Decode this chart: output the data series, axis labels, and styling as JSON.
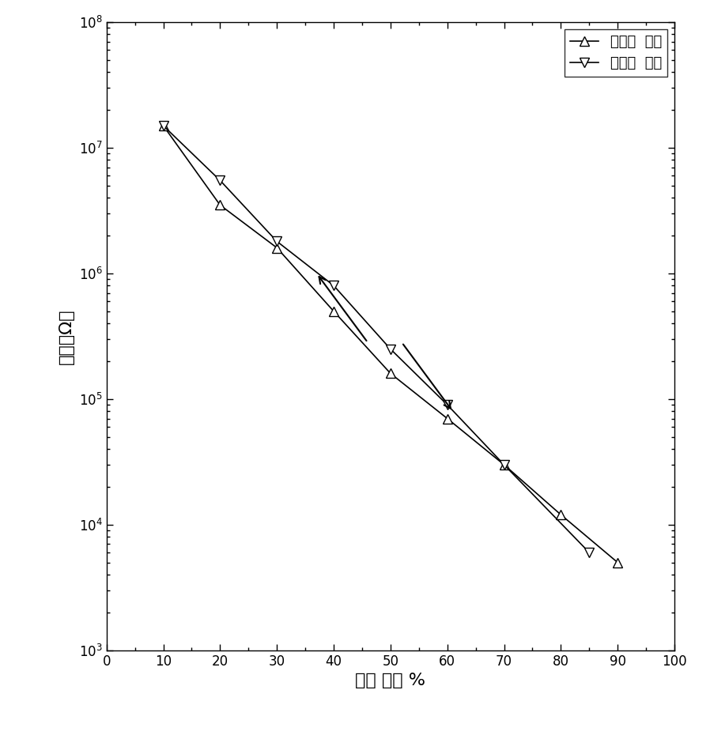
{
  "series1_label": "高湿到  低湿",
  "series2_label": "低湿到  高湿",
  "series1_x": [
    10,
    20,
    30,
    40,
    50,
    60,
    70,
    80,
    90
  ],
  "series1_y": [
    15000000.0,
    3500000.0,
    1600000.0,
    500000.0,
    160000.0,
    70000.0,
    30000.0,
    12000.0,
    5000
  ],
  "series2_x": [
    10,
    20,
    30,
    40,
    50,
    60,
    70,
    85
  ],
  "series2_y": [
    15000000.0,
    5500000.0,
    1800000.0,
    800000.0,
    250000.0,
    90000.0,
    30000.0,
    6000
  ],
  "xlabel": "相对 湿度 %",
  "ylabel": "电阻（Ω）",
  "xlim": [
    0,
    100
  ],
  "ylim_log_min": 3,
  "ylim_log_max": 8,
  "xticks": [
    0,
    10,
    20,
    30,
    40,
    50,
    60,
    70,
    80,
    90,
    100
  ],
  "color": "#000000",
  "figsize": [
    8.98,
    9.35
  ],
  "dpi": 100,
  "legend_loc": "upper right",
  "marker_size": 8,
  "line_width": 1.2
}
